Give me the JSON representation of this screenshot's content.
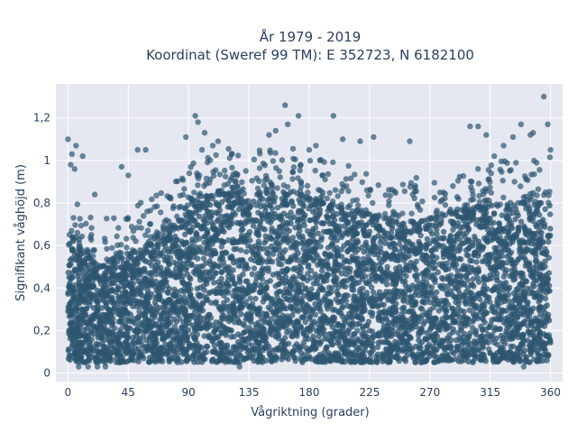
{
  "chart_data": {
    "type": "scatter",
    "title_line1": "År 1979 - 2019",
    "title_line2": "Koordinat (Sweref 99 TM): E 352723, N 6182100",
    "xlabel": "Vågriktning (grader)",
    "ylabel": "Signifikant våghöjd (m)",
    "xlim": [
      -9,
      369
    ],
    "ylim": [
      -0.04,
      1.36
    ],
    "x_ticks": [
      0,
      45,
      90,
      135,
      180,
      225,
      270,
      315,
      360
    ],
    "x_tick_labels": [
      "0",
      "45",
      "90",
      "135",
      "180",
      "225",
      "270",
      "315",
      "360"
    ],
    "y_ticks": [
      0,
      0.2,
      0.4,
      0.6,
      0.8,
      1.0,
      1.2
    ],
    "y_tick_labels": [
      "0",
      "0,2",
      "0,4",
      "0,6",
      "0,8",
      "1",
      "1,2"
    ],
    "grid": true,
    "marker_color": "#2e5570",
    "plot_background": "#e5e8f0",
    "points_description_note": "",
    "envelope": {
      "x": [
        0,
        5,
        10,
        20,
        30,
        45,
        60,
        75,
        85,
        90,
        100,
        110,
        135,
        150,
        165,
        180,
        200,
        225,
        250,
        270,
        290,
        315,
        330,
        345,
        360
      ],
      "ymin": [
        0.06,
        0.05,
        0.05,
        0.05,
        0.05,
        0.05,
        0.05,
        0.05,
        0.05,
        0.05,
        0.05,
        0.05,
        0.05,
        0.05,
        0.05,
        0.05,
        0.05,
        0.05,
        0.05,
        0.05,
        0.05,
        0.05,
        0.05,
        0.05,
        0.06
      ],
      "ydense": [
        0.62,
        0.62,
        0.58,
        0.52,
        0.52,
        0.55,
        0.62,
        0.66,
        0.72,
        0.76,
        0.82,
        0.84,
        0.84,
        0.84,
        0.86,
        0.82,
        0.78,
        0.74,
        0.7,
        0.72,
        0.76,
        0.78,
        0.8,
        0.8,
        0.8
      ]
    },
    "outliers": [
      {
        "x": 0,
        "y": 1.1
      },
      {
        "x": 3,
        "y": 1.03
      },
      {
        "x": 6,
        "y": 1.07
      },
      {
        "x": 2,
        "y": 0.98
      },
      {
        "x": 5,
        "y": 0.96
      },
      {
        "x": 11,
        "y": 1.02
      },
      {
        "x": 40,
        "y": 0.97
      },
      {
        "x": 52,
        "y": 1.05
      },
      {
        "x": 58,
        "y": 1.05
      },
      {
        "x": 88,
        "y": 1.11
      },
      {
        "x": 95,
        "y": 1.21
      },
      {
        "x": 97,
        "y": 1.18
      },
      {
        "x": 100,
        "y": 1.05
      },
      {
        "x": 102,
        "y": 1.13
      },
      {
        "x": 108,
        "y": 1.07
      },
      {
        "x": 112,
        "y": 1.09
      },
      {
        "x": 150,
        "y": 1.12
      },
      {
        "x": 155,
        "y": 1.14
      },
      {
        "x": 162,
        "y": 1.26
      },
      {
        "x": 164,
        "y": 1.17
      },
      {
        "x": 172,
        "y": 1.21
      },
      {
        "x": 180,
        "y": 1.05
      },
      {
        "x": 185,
        "y": 1.07
      },
      {
        "x": 198,
        "y": 1.21
      },
      {
        "x": 205,
        "y": 1.1
      },
      {
        "x": 218,
        "y": 1.09
      },
      {
        "x": 228,
        "y": 1.11
      },
      {
        "x": 255,
        "y": 1.09
      },
      {
        "x": 300,
        "y": 1.16
      },
      {
        "x": 306,
        "y": 1.16
      },
      {
        "x": 312,
        "y": 1.12
      },
      {
        "x": 325,
        "y": 1.07
      },
      {
        "x": 332,
        "y": 1.11
      },
      {
        "x": 338,
        "y": 1.17
      },
      {
        "x": 345,
        "y": 1.12
      },
      {
        "x": 347,
        "y": 1.13
      },
      {
        "x": 355,
        "y": 1.3
      },
      {
        "x": 358,
        "y": 1.17
      },
      {
        "x": 360,
        "y": 1.05
      },
      {
        "x": 318,
        "y": 1.02
      },
      {
        "x": 20,
        "y": 0.84
      },
      {
        "x": 45,
        "y": 0.93
      }
    ],
    "low_outliers": [
      {
        "x": 8,
        "y": 0.03
      },
      {
        "x": 15,
        "y": 0.03
      },
      {
        "x": 22,
        "y": 0.03
      },
      {
        "x": 28,
        "y": 0.03
      },
      {
        "x": 128,
        "y": 0.03
      },
      {
        "x": 340,
        "y": 0.03
      }
    ]
  }
}
